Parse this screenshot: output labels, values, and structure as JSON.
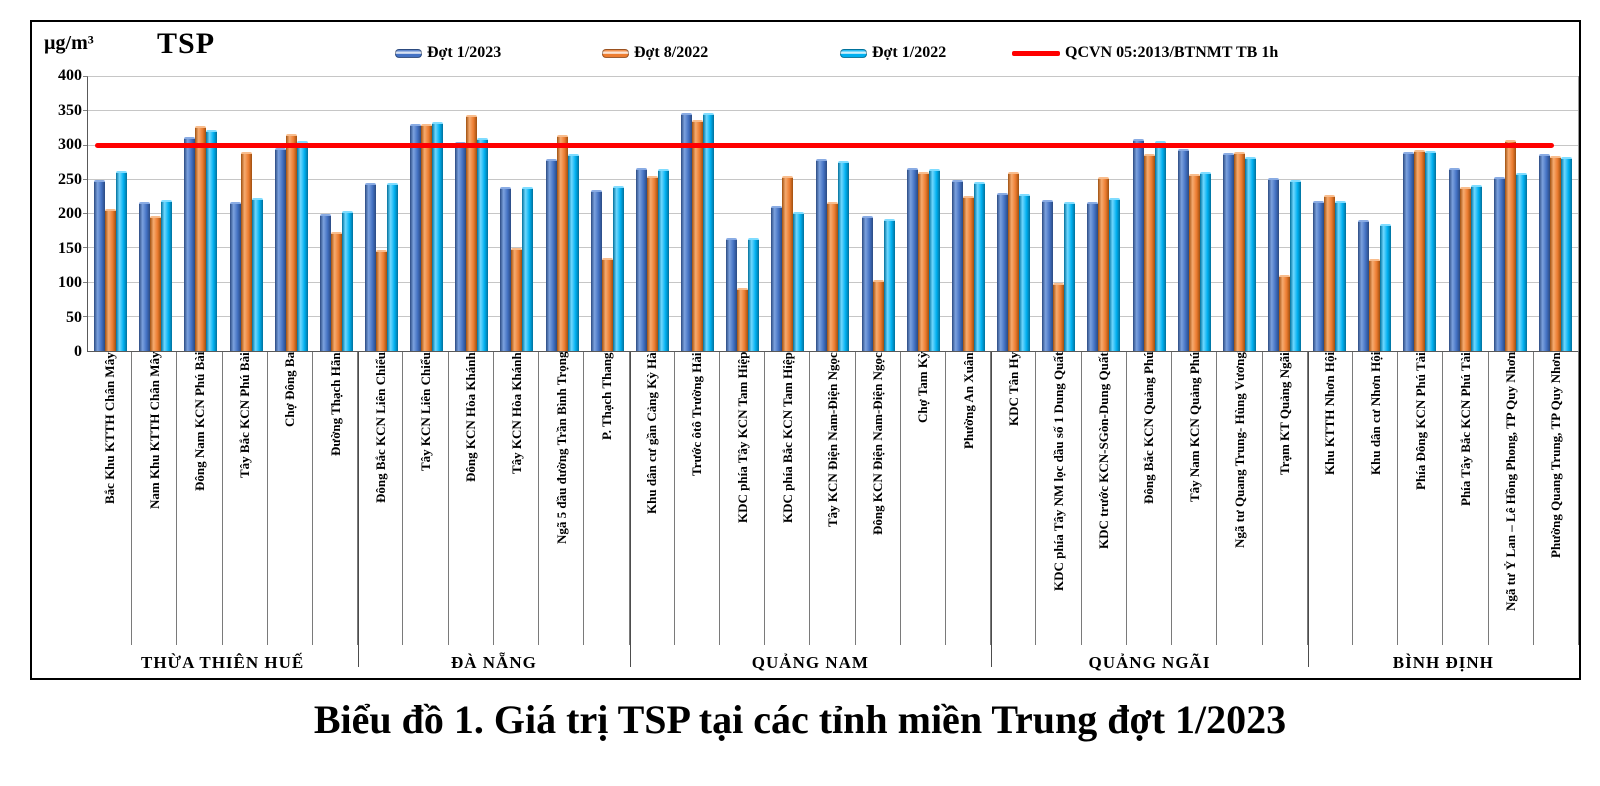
{
  "caption": "Biểu đồ 1. Giá trị TSP tại các tỉnh miền Trung đợt 1/2023",
  "chart_data": {
    "type": "bar",
    "title": "TSP",
    "unit": "µg/m³",
    "ylim": [
      0,
      400
    ],
    "ytick_step": 50,
    "grid": true,
    "legend_position": "top",
    "series": [
      {
        "name": "Đợt 1/2023",
        "color": "#4472C4"
      },
      {
        "name": "Đợt 8/2022",
        "color": "#ED7D31"
      },
      {
        "name": "Đợt 1/2022",
        "color": "#00B0F0"
      }
    ],
    "reference_line": {
      "name": "QCVN 05:2013/BTNMT  TB 1h",
      "value": 300,
      "color": "#FF0000"
    },
    "groups": [
      {
        "province": "THỪA THIÊN HUẾ",
        "stations": [
          {
            "name": "Bắc Khu KTTH Chân Mây",
            "values": [
              250,
              208,
              263
            ]
          },
          {
            "name": "Nam Khu KTTH Chân Mây",
            "values": [
              218,
              197,
              220
            ]
          },
          {
            "name": "Đông Nam KCN Phú Bài",
            "values": [
              313,
              329,
              323
            ]
          },
          {
            "name": "Tây Bắc KCN Phú Bài",
            "values": [
              218,
              291,
              224
            ]
          },
          {
            "name": "Chợ Đông Ba",
            "values": [
              297,
              317,
              306
            ]
          },
          {
            "name": "Đường Thạch Hãn",
            "values": [
              200,
              174,
              205
            ]
          }
        ]
      },
      {
        "province": "ĐÀ NẴNG",
        "stations": [
          {
            "name": "Đông Bắc KCN Liên  Chiểu",
            "values": [
              246,
              148,
              245
            ]
          },
          {
            "name": "Tây KCN Liên  Chiểu",
            "values": [
              331,
              332,
              335
            ]
          },
          {
            "name": "Đông KCN Hòa Khánh",
            "values": [
              305,
              345,
              311
            ]
          },
          {
            "name": "Tây KCN Hòa Khánh",
            "values": [
              239,
              151,
              239
            ]
          },
          {
            "name": "Ngã 5 đầu đường Trần Bình Trọng",
            "values": [
              281,
              316,
              288
            ]
          },
          {
            "name": "P. Thạch Thang",
            "values": [
              235,
              136,
              241
            ]
          }
        ]
      },
      {
        "province": "QUẢNG NAM",
        "stations": [
          {
            "name": "Khu dân cư gần Cảng Kỳ Hà",
            "values": [
              267,
              255,
              265
            ]
          },
          {
            "name": "Trước ôtô Trường Hải",
            "values": [
              347,
              337,
              347
            ]
          },
          {
            "name": "KDC phía Tây KCN Tam Hiệp",
            "values": [
              165,
              92,
              165
            ]
          },
          {
            "name": "KDC phía Bắc KCN Tam Hiệp",
            "values": [
              211,
              255,
              203
            ]
          },
          {
            "name": "Tây KCN Điện Nam-Điện Ngọc",
            "values": [
              280,
              218,
              277
            ]
          },
          {
            "name": "Đông KCN Điện Nam-Điện Ngọc",
            "values": [
              197,
              103,
              193
            ]
          },
          {
            "name": "Chợ Tam Kỳ",
            "values": [
              267,
              261,
              266
            ]
          },
          {
            "name": "Phường An Xuân",
            "values": [
              249,
              226,
              247
            ]
          }
        ]
      },
      {
        "province": "QUẢNG NGÃI",
        "stations": [
          {
            "name": "KDC Tân Hy",
            "values": [
              230,
              261,
              229
            ]
          },
          {
            "name": "KDC phía Tây NM lọc dầu số 1 Dung Quất",
            "values": [
              221,
              100,
              217
            ]
          },
          {
            "name": "KDC trước KCN-SGòn-Dung Quất",
            "values": [
              218,
              254,
              223
            ]
          },
          {
            "name": "Đông Bắc KCN Quảng Phú",
            "values": [
              310,
              288,
              307
            ]
          },
          {
            "name": "Tây Nam KCN Quảng Phú",
            "values": [
              295,
              258,
              262
            ]
          },
          {
            "name": "Ngã tư Quang Trung- Hùng Vương",
            "values": [
              289,
              291,
              283
            ]
          },
          {
            "name": "Trạm KT Quảng Ngãi",
            "values": [
              253,
              111,
              250
            ]
          }
        ]
      },
      {
        "province": "BÌNH ĐỊNH",
        "stations": [
          {
            "name": "Khu KTTH Nhơn Hội",
            "values": [
              219,
              228,
              219
            ]
          },
          {
            "name": "Khu dân cư Nhơn Hội",
            "values": [
              191,
              134,
              186
            ]
          },
          {
            "name": "Phía Đông KCN Phú Tài",
            "values": [
              290,
              294,
              292
            ]
          },
          {
            "name": "Phía Tây Bắc KCN Phú Tài",
            "values": [
              267,
              240,
              242
            ]
          },
          {
            "name": "Ngã tư Ỷ Lan – Lê Hồng Phong, TP Quy Nhơn",
            "values": [
              254,
              308,
              260
            ]
          },
          {
            "name": "Phường Quang Trung, TP Quy Nhơn",
            "values": [
              287,
              285,
              283
            ]
          }
        ]
      }
    ]
  }
}
